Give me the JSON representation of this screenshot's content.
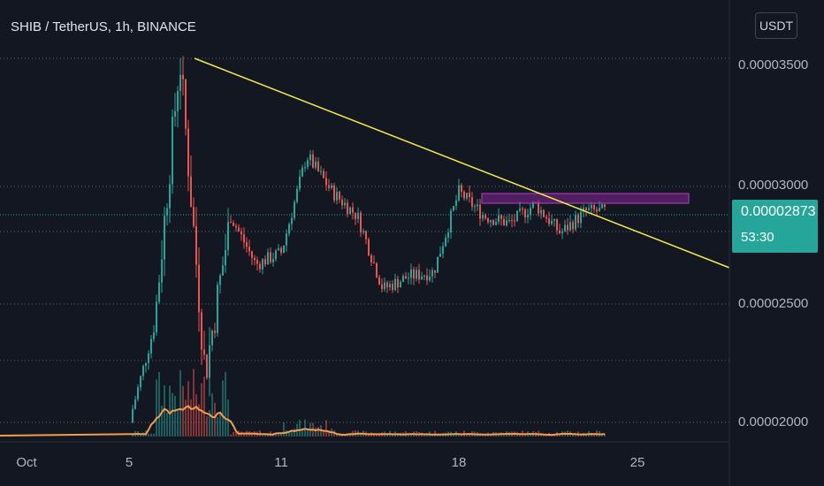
{
  "header": {
    "symbol": "SHIB / TetherUS, 1h, BINANCE",
    "currency_button": "USDT"
  },
  "price_axis": {
    "labels": [
      "0.00003500",
      "0.00003000",
      "0.00002500",
      "0.00002000"
    ]
  },
  "current_price": {
    "value": "0.00002873",
    "countdown": "53:30"
  },
  "time_axis": {
    "labels": [
      "Oct",
      "5",
      "11",
      "18",
      "25"
    ]
  },
  "colors": {
    "background": "#131722",
    "up": "#26a69a",
    "down": "#ef5350",
    "trendline": "#f5e94a",
    "volume_line": "#f39c4b",
    "resistance_box": "#9c27b0"
  },
  "chart_data": {
    "type": "candlestick",
    "timeframe": "1h",
    "price_ticks": [
      3.5e-05,
      3e-05,
      2.5e-05,
      2e-05
    ],
    "current_price": 2.873e-05,
    "x_axis": [
      "Oct",
      "5",
      "11",
      "18",
      "25"
    ],
    "price_path": [
      {
        "x": "Oct 5",
        "y": 2e-05
      },
      {
        "x": "Oct 6",
        "y": 2.4e-05
      },
      {
        "x": "Oct 7",
        "y": 3.5e-05
      },
      {
        "x": "Oct 8",
        "y": 2.2e-05
      },
      {
        "x": "Oct 9",
        "y": 2.85e-05
      },
      {
        "x": "Oct 10",
        "y": 2.65e-05
      },
      {
        "x": "Oct 11",
        "y": 2.7e-05
      },
      {
        "x": "Oct 12",
        "y": 3.1e-05
      },
      {
        "x": "Oct 13",
        "y": 2.95e-05
      },
      {
        "x": "Oct 14",
        "y": 2.85e-05
      },
      {
        "x": "Oct 15",
        "y": 2.55e-05
      },
      {
        "x": "Oct 16",
        "y": 2.6e-05
      },
      {
        "x": "Oct 17",
        "y": 2.62e-05
      },
      {
        "x": "Oct 18",
        "y": 2.95e-05
      },
      {
        "x": "Oct 19",
        "y": 2.85e-05
      },
      {
        "x": "Oct 20",
        "y": 2.82e-05
      },
      {
        "x": "Oct 21",
        "y": 2.9e-05
      },
      {
        "x": "Oct 22",
        "y": 2.78e-05
      },
      {
        "x": "Oct 23",
        "y": 2.87e-05
      }
    ],
    "trendline": {
      "from": {
        "x": "Oct 7",
        "y": 3.5e-05
      },
      "to": {
        "x": "Oct 27",
        "y": 2.66e-05
      }
    },
    "resistance_zone": {
      "from": "Oct 19",
      "to": "Oct 26",
      "y_low": 2.94e-05,
      "y_high": 2.99e-05
    }
  }
}
